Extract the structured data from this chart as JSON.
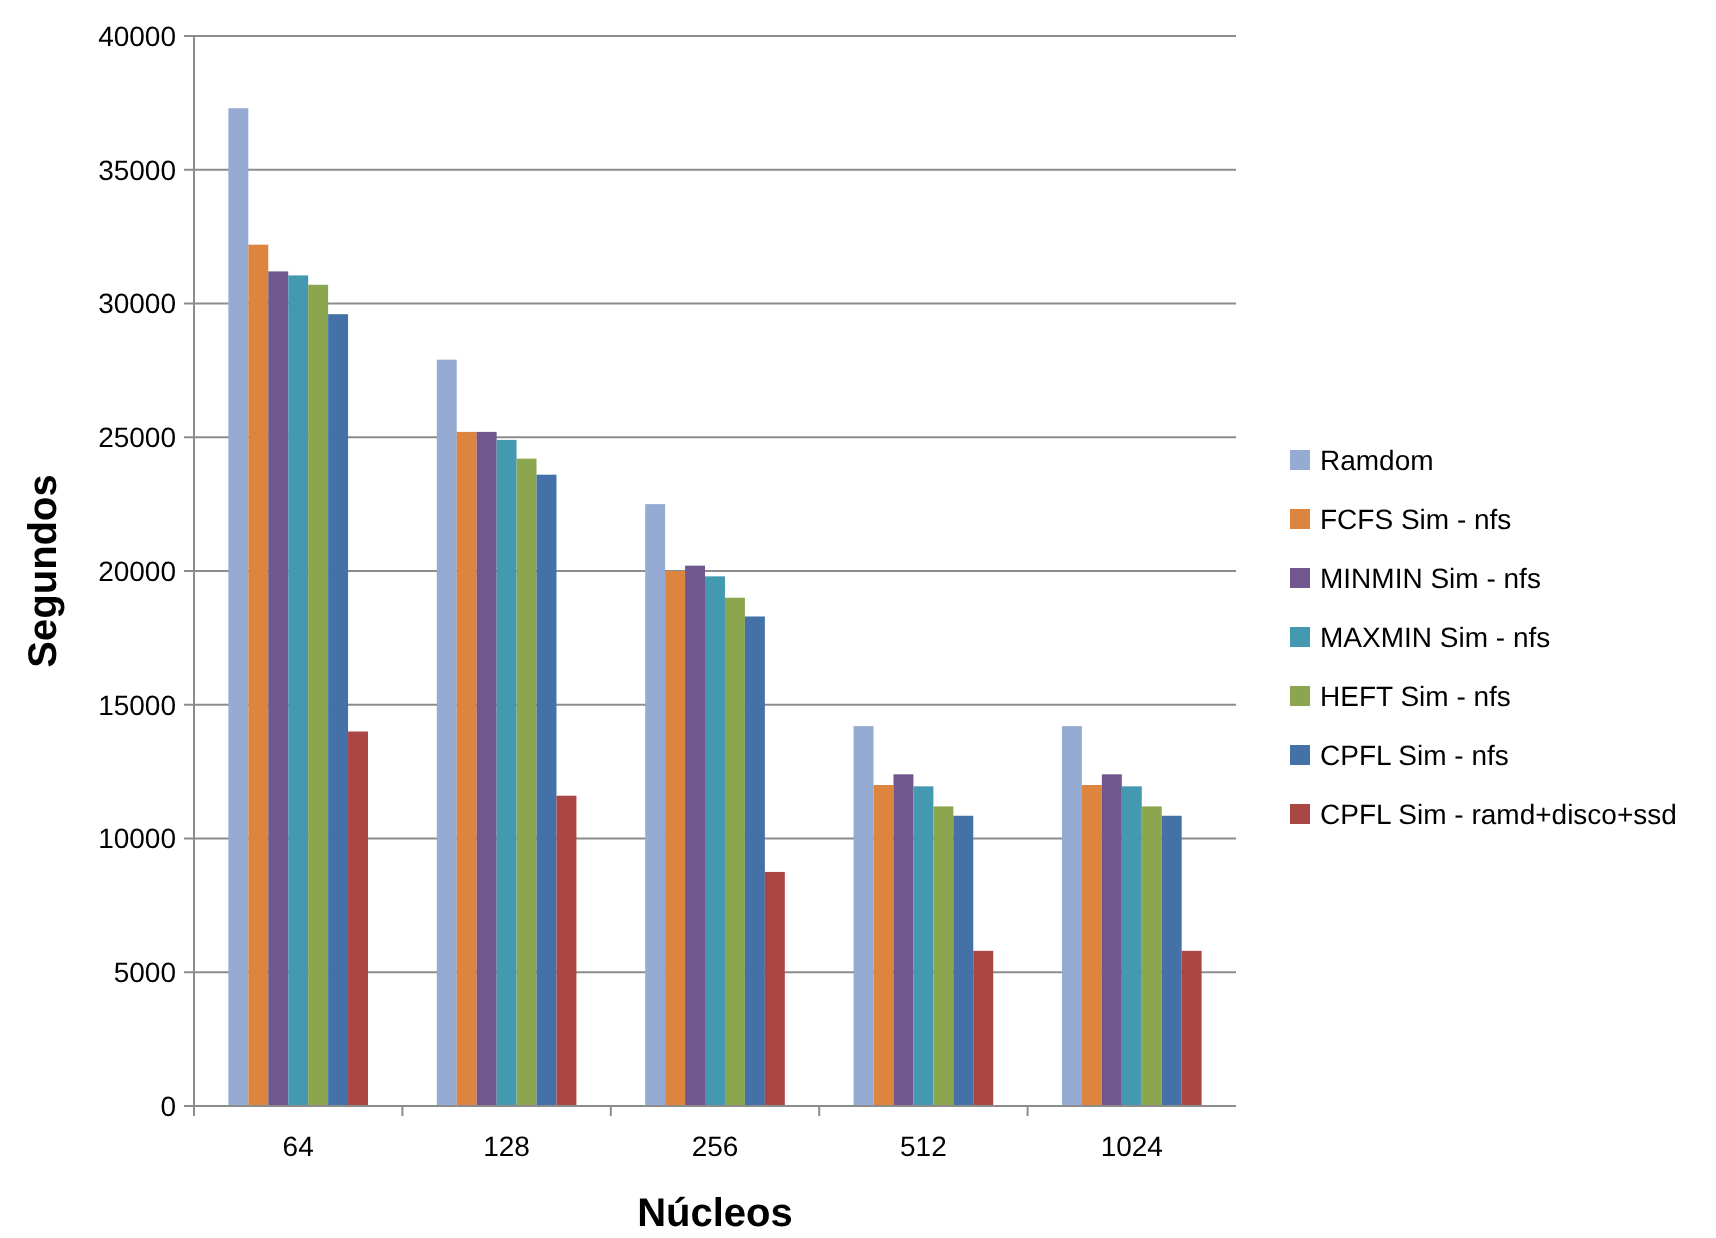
{
  "chart_data": {
    "type": "bar",
    "xlabel": "Núcleos",
    "ylabel": "Segundos",
    "categories": [
      "64",
      "128",
      "256",
      "512",
      "1024"
    ],
    "series": [
      {
        "name": "Ramdom",
        "color": "#95abd4",
        "values": [
          37300,
          27900,
          22500,
          14200,
          14200
        ]
      },
      {
        "name": "FCFS Sim - nfs",
        "color": "#dd843f",
        "values": [
          32200,
          25200,
          20000,
          12000,
          12000
        ]
      },
      {
        "name": "MINMIN Sim - nfs",
        "color": "#70588f",
        "values": [
          31200,
          25200,
          20200,
          12400,
          12400
        ]
      },
      {
        "name": "MAXMIN Sim - nfs",
        "color": "#4299b0",
        "values": [
          31050,
          24900,
          19800,
          11950,
          11950
        ]
      },
      {
        "name": "HEFT Sim - nfs",
        "color": "#8ba64f",
        "values": [
          30700,
          24200,
          19000,
          11200,
          11200
        ]
      },
      {
        "name": "CPFL Sim - nfs",
        "color": "#4472a8",
        "values": [
          29600,
          23600,
          18300,
          10850,
          10850
        ]
      },
      {
        "name": "CPFL Sim - ramd+disco+ssd",
        "color": "#aa4643",
        "values": [
          14000,
          11600,
          8750,
          5800,
          5800
        ]
      }
    ],
    "ylim": [
      0,
      40000
    ],
    "yticks": [
      0,
      5000,
      10000,
      15000,
      20000,
      25000,
      30000,
      35000,
      40000
    ],
    "grid": "y",
    "legend": "right"
  }
}
